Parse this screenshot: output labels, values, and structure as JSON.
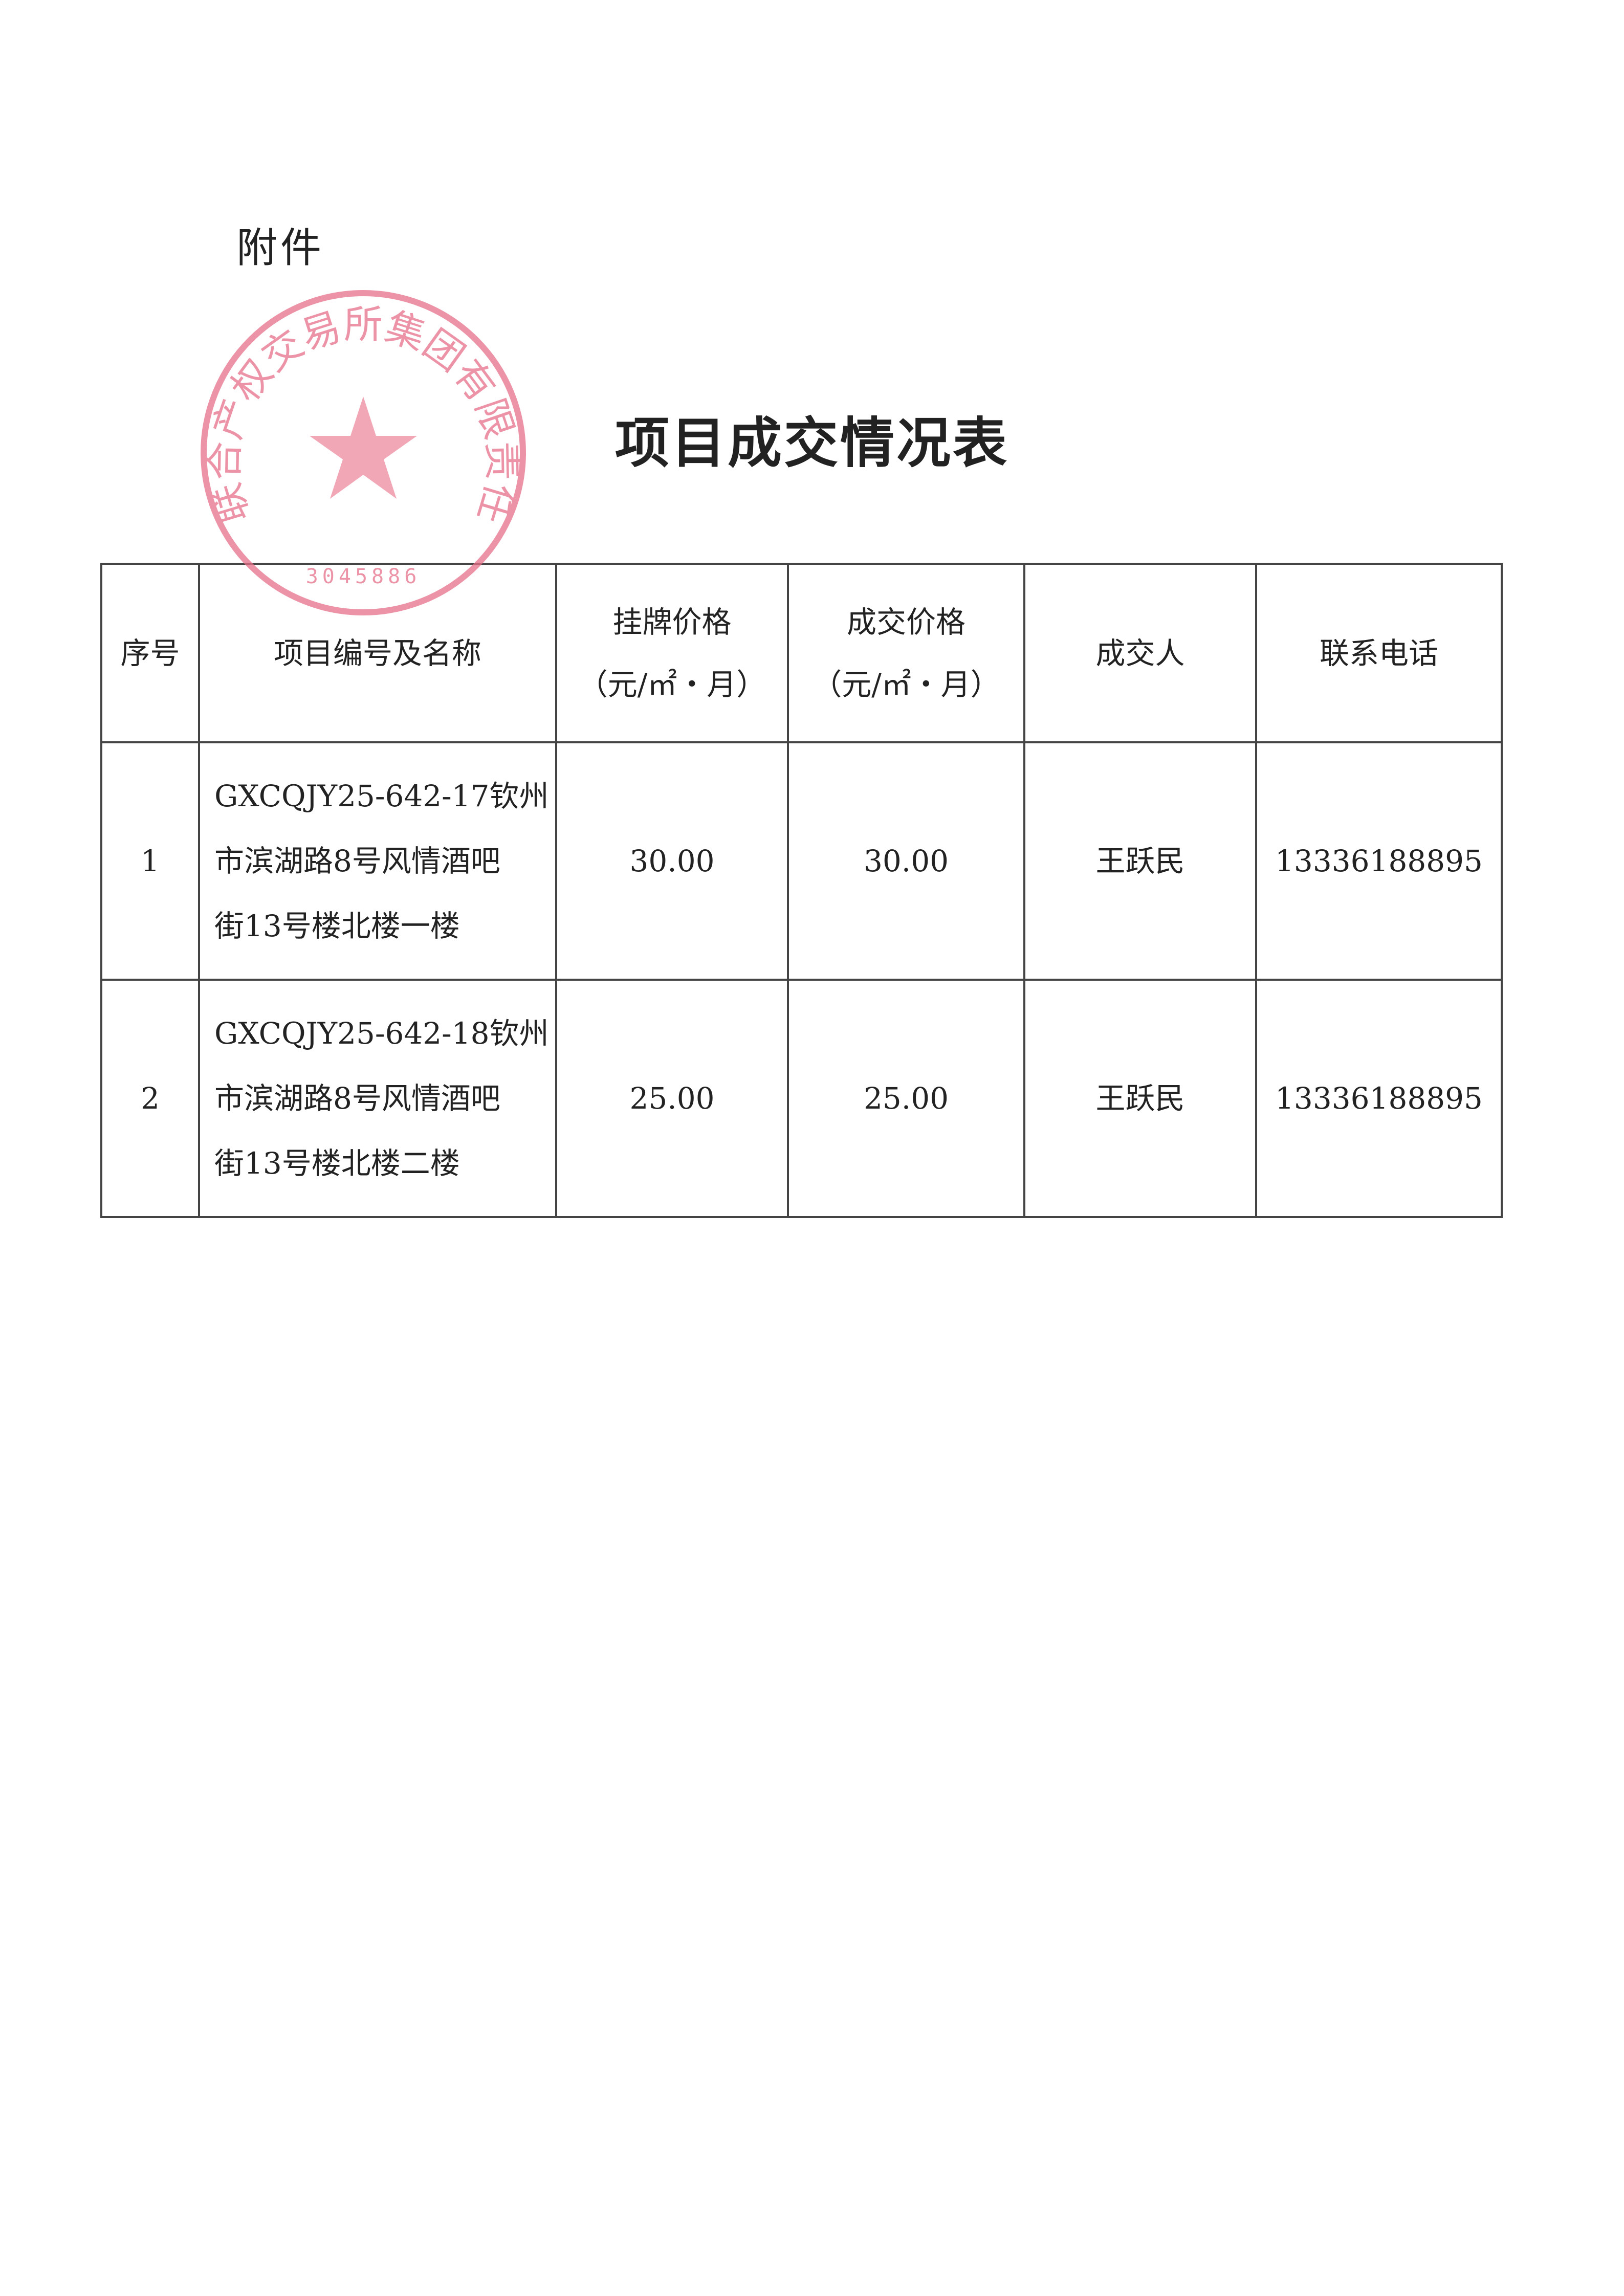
{
  "attachment_label": "附件",
  "title": "项目成交情况表",
  "table": {
    "headers": [
      "序号",
      "项目编号及名称",
      "挂牌价格",
      "成交价格",
      "成交人",
      "联系电话"
    ],
    "unit": "（元/㎡・月）",
    "rows": [
      {
        "index": "1",
        "name_lines": [
          "GXCQJY25-642-17钦州",
          "市滨湖路8号风情酒吧",
          "街13号楼北楼一楼"
        ],
        "listing_price": "30.00",
        "deal_price": "30.00",
        "buyer": "王跃民",
        "phone": "13336188895"
      },
      {
        "index": "2",
        "name_lines": [
          "GXCQJY25-642-18钦州",
          "市滨湖路8号风情酒吧",
          "街13号楼北楼二楼"
        ],
        "listing_price": "25.00",
        "deal_price": "25.00",
        "buyer": "王跃民",
        "phone": "13336188895"
      }
    ]
  },
  "stamp": {
    "text": "广西联合产权交易所集团有限责任公司",
    "number": "3045886",
    "color": "#e8708a"
  }
}
